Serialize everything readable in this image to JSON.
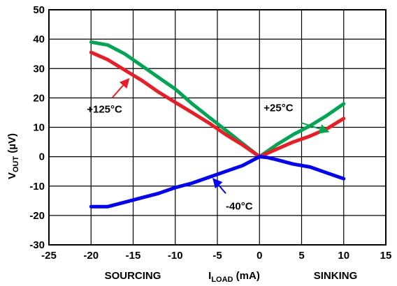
{
  "chart_data": {
    "type": "line",
    "xlabel": {
      "main": "I",
      "sub": "LOAD",
      "unit": " (mA)"
    },
    "ylabel": {
      "main": "V",
      "sub": "OUT",
      "unit": " (µV)"
    },
    "xlim": [
      -25,
      15
    ],
    "ylim": [
      -30,
      50
    ],
    "xticks": [
      -25,
      -20,
      -15,
      -10,
      -5,
      0,
      5,
      10,
      15
    ],
    "yticks": [
      -30,
      -20,
      -10,
      0,
      10,
      20,
      30,
      40,
      50
    ],
    "grid": true,
    "bottom_labels": {
      "left": "SOURCING",
      "right": "SINKING"
    },
    "series": [
      {
        "name": "+25°C",
        "color": "#00a651",
        "points": [
          [
            -20,
            39.0
          ],
          [
            -18,
            38.0
          ],
          [
            -16,
            35.0
          ],
          [
            -14,
            31.0
          ],
          [
            -12,
            27.0
          ],
          [
            -10,
            23.0
          ],
          [
            -8,
            18.0
          ],
          [
            -6,
            13.5
          ],
          [
            -4,
            9.0
          ],
          [
            -2,
            4.5
          ],
          [
            0,
            0.0
          ],
          [
            2,
            4.0
          ],
          [
            4,
            7.5
          ],
          [
            6,
            10.5
          ],
          [
            8,
            14.0
          ],
          [
            10,
            18.0
          ]
        ]
      },
      {
        "name": "+125°C",
        "color": "#ed1c24",
        "points": [
          [
            -20,
            35.5
          ],
          [
            -18,
            33.0
          ],
          [
            -16,
            29.5
          ],
          [
            -14,
            26.0
          ],
          [
            -12,
            22.0
          ],
          [
            -10,
            18.5
          ],
          [
            -8,
            15.0
          ],
          [
            -6,
            11.5
          ],
          [
            -4,
            7.5
          ],
          [
            -2,
            4.0
          ],
          [
            0,
            0.0
          ],
          [
            2,
            2.5
          ],
          [
            4,
            5.0
          ],
          [
            6,
            7.0
          ],
          [
            8,
            9.5
          ],
          [
            10,
            13.0
          ]
        ]
      },
      {
        "name": "-40°C",
        "color": "#0000ff",
        "points": [
          [
            -20,
            -17.0
          ],
          [
            -18,
            -17.0
          ],
          [
            -16,
            -15.5
          ],
          [
            -14,
            -14.0
          ],
          [
            -12,
            -12.5
          ],
          [
            -10,
            -10.5
          ],
          [
            -8,
            -9.0
          ],
          [
            -6,
            -7.0
          ],
          [
            -4,
            -5.0
          ],
          [
            -2,
            -3.0
          ],
          [
            0,
            0.0
          ],
          [
            1,
            -0.3
          ],
          [
            2,
            -1.0
          ],
          [
            4,
            -2.5
          ],
          [
            6,
            -3.5
          ],
          [
            8,
            -5.5
          ],
          [
            10,
            -7.5
          ]
        ]
      }
    ],
    "annotations": [
      {
        "text": "+125°C",
        "color": "#ed1c24",
        "label_at": [
          -20.5,
          15.0
        ],
        "arrow_from": [
          -17.5,
          20.0
        ],
        "arrow_to": [
          -15.5,
          26.5
        ]
      },
      {
        "text": "+25°C",
        "color": "#00a651",
        "label_at": [
          0.5,
          15.5
        ],
        "arrow_from": [
          5.0,
          11.5
        ],
        "arrow_to": [
          8.2,
          8.5
        ]
      },
      {
        "text": "-40°C",
        "color": "#0000ff",
        "label_at": [
          -4.0,
          -18.0
        ],
        "arrow_from": [
          -4.0,
          -12.5
        ],
        "arrow_to": [
          -5.5,
          -7.5
        ]
      }
    ]
  }
}
